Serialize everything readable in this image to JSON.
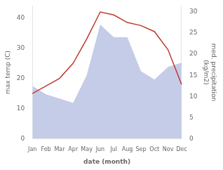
{
  "chart_data": {
    "type": "line",
    "xlabel": "date (month)",
    "ylabel": "max temp (C)",
    "y2label": "med. precipitation\n(kg/m2)",
    "categories": [
      "Jan",
      "Feb",
      "Mar",
      "Apr",
      "May",
      "Jun",
      "Jul",
      "Aug",
      "Sep",
      "Oct",
      "Nov",
      "Dec"
    ],
    "series": [
      {
        "type": "line",
        "color": "#c0392b",
        "values": [
          15.0,
          17.5,
          20.0,
          25.0,
          33.0,
          42.0,
          41.0,
          38.5,
          37.5,
          35.5,
          29.5,
          18.0
        ]
      },
      {
        "type": "area",
        "color": "#c5cce8",
        "axis": "y2",
        "values": [
          12.5,
          10.5,
          9.5,
          8.5,
          15.0,
          27.0,
          24.0,
          24.0,
          16.0,
          14.0,
          17.0,
          18.0
        ]
      }
    ],
    "ylim": [
      0,
      44
    ],
    "yticks": [
      0,
      10,
      20,
      30,
      40
    ],
    "y2lim": [
      0,
      31.4
    ],
    "y2ticks": [
      0,
      5,
      10,
      15,
      20,
      25,
      30
    ],
    "grid": false,
    "legend": false
  }
}
